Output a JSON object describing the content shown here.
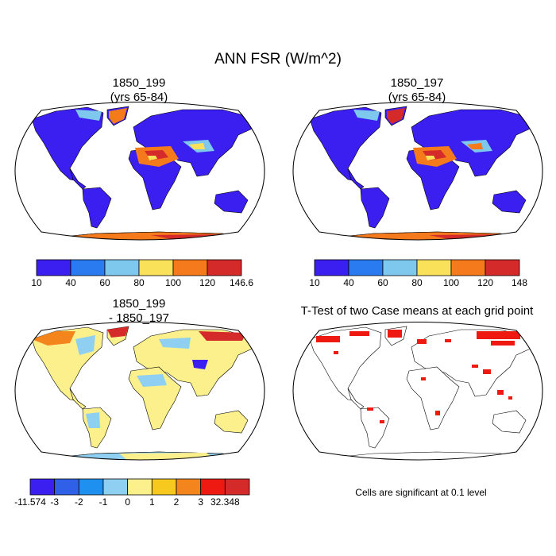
{
  "title": "ANN FSR (W/m^2)",
  "panels": [
    {
      "id": "case1",
      "title_line1": "1850_199",
      "title_line2": "(yrs 65-84)",
      "colors": [
        "#3b1ef0",
        "#2a7af0",
        "#7ec8ee",
        "#f9e25a",
        "#f57a1c",
        "#d42a2a"
      ],
      "labels": [
        "10",
        "40",
        "60",
        "80",
        "100",
        "120",
        "146.6"
      ]
    },
    {
      "id": "case2",
      "title_line1": "1850_197",
      "title_line2": "(yrs 65-84)",
      "colors": [
        "#3b1ef0",
        "#2a7af0",
        "#7ec8ee",
        "#f9e25a",
        "#f57a1c",
        "#d42a2a"
      ],
      "labels": [
        "10",
        "40",
        "60",
        "80",
        "100",
        "120",
        "148"
      ]
    },
    {
      "id": "diff",
      "title_line1": "1850_199",
      "title_line2": "- 1850_197",
      "colors": [
        "#3b1ef0",
        "#3060e8",
        "#1e90f0",
        "#8fd0f2",
        "#fbf08c",
        "#f7c91e",
        "#f4851c",
        "#ee1a12",
        "#d42a2a"
      ],
      "labels": [
        "-11.574",
        "-3",
        "-2",
        "-1",
        "0",
        "1",
        "2",
        "3",
        "32.348"
      ]
    },
    {
      "id": "ttest",
      "title_line1": "T-Test of two Case means at each grid point",
      "note": "Cells are significant at 0.1 level"
    }
  ]
}
